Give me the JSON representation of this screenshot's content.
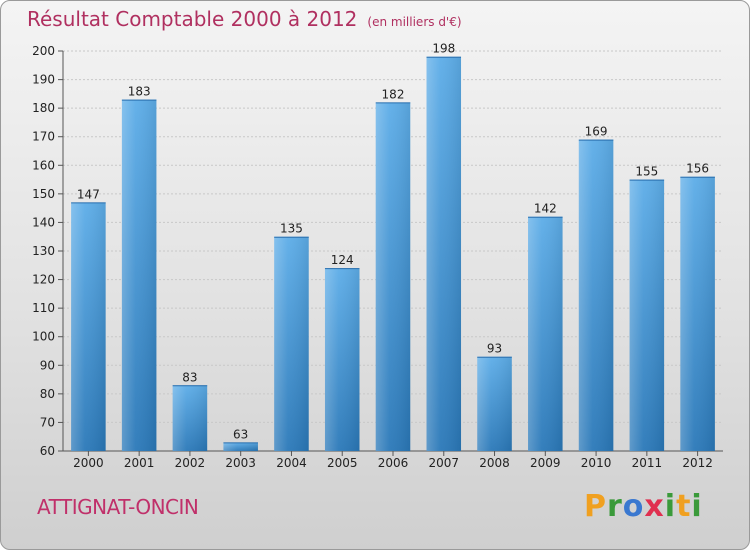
{
  "header": {
    "title": "Résultat Comptable 2000 à 2012",
    "subtitle": "(en milliers d'€)"
  },
  "place": "ATTIGNAT-ONCIN",
  "logo": {
    "letters": [
      "P",
      "r",
      "o",
      "x",
      "i",
      "t",
      "i"
    ],
    "colors": [
      "#f0a020",
      "#3a9a3a",
      "#3a78d0",
      "#e03050",
      "#3a9a3a",
      "#f0a020",
      "#3a9a3a"
    ]
  },
  "chart_data": {
    "type": "bar",
    "categories": [
      "2000",
      "2001",
      "2002",
      "2003",
      "2004",
      "2005",
      "2006",
      "2007",
      "2008",
      "2009",
      "2010",
      "2011",
      "2012"
    ],
    "values": [
      147,
      183,
      83,
      63,
      135,
      124,
      182,
      198,
      93,
      142,
      169,
      155,
      156
    ],
    "ylim": [
      60,
      200
    ],
    "yticks": [
      60,
      70,
      80,
      90,
      100,
      110,
      120,
      130,
      140,
      150,
      160,
      170,
      180,
      190,
      200
    ],
    "grid": true,
    "bar_color_top": "#5dade8",
    "bar_color_bottom": "#2a78b8",
    "xlabel": "",
    "ylabel": ""
  }
}
